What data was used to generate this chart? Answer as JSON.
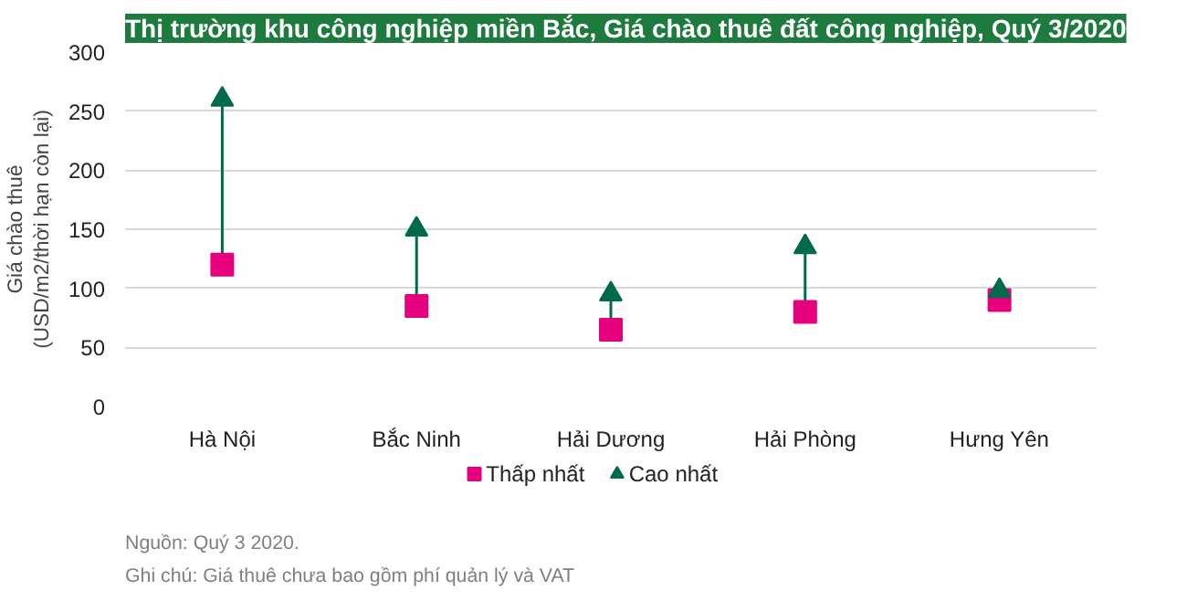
{
  "chart_data": {
    "type": "scatter",
    "title": "Thị trường khu công nghiệp miền Bắc, Giá chào thuê đất công nghiệp, Quý 3/2020",
    "ylabel": "Giá chào thuê\n(USD/m2/thời hạn còn lại)",
    "categories": [
      "Hà Nội",
      "Bắc Ninh",
      "Hải Dương",
      "Hải Phòng",
      "Hưng Yên"
    ],
    "series": [
      {
        "name": "Thấp nhất",
        "color": "#e6007e",
        "marker": "square",
        "values": [
          120,
          85,
          65,
          80,
          90
        ]
      },
      {
        "name": "Cao nhất",
        "color": "#006a4d",
        "marker": "triangle",
        "values": [
          260,
          150,
          95,
          135,
          98
        ]
      }
    ],
    "ylim": [
      0,
      300
    ],
    "yticks": [
      0,
      50,
      100,
      150,
      200,
      250,
      300
    ],
    "grid": "y",
    "legend": "bottom",
    "annotations": [
      "Nguồn: Quý 3 2020.",
      "Ghi chú: Giá thuê chưa bao gồm phí quản lý và VAT"
    ]
  }
}
